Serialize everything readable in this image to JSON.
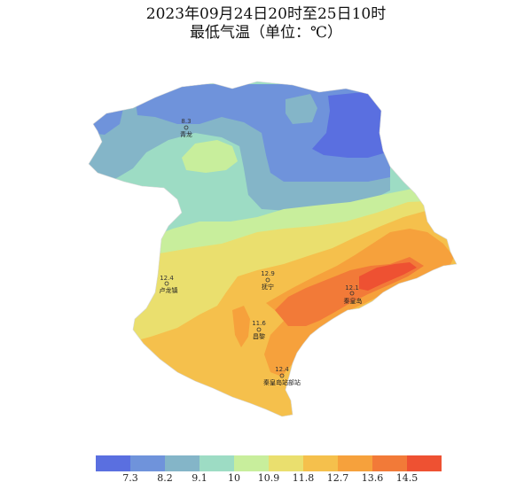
{
  "header": {
    "title_line1": "2023年09月24日20时至25日10时",
    "title_line2": "最低气温（单位：℃）"
  },
  "stations": [
    {
      "name": "青龙",
      "value": "8.3"
    },
    {
      "name": "卢龙镇",
      "value": "12.4"
    },
    {
      "name": "抚宁",
      "value": "12.9"
    },
    {
      "name": "秦皇岛",
      "value": "12.1"
    },
    {
      "name": "昌黎",
      "value": "11.6"
    },
    {
      "name": "秦皇岛站部站",
      "value": "12.4"
    }
  ],
  "legend": {
    "colors": [
      "#5a6fe0",
      "#6f93db",
      "#84b5c8",
      "#9ddcc4",
      "#c8ee9c",
      "#eadf6e",
      "#f5c04c",
      "#f6a13c",
      "#f27a38",
      "#ee5132"
    ],
    "thresholds": [
      "7.3",
      "8.2",
      "9.1",
      "10",
      "10.9",
      "11.8",
      "12.7",
      "13.6",
      "14.5"
    ]
  }
}
